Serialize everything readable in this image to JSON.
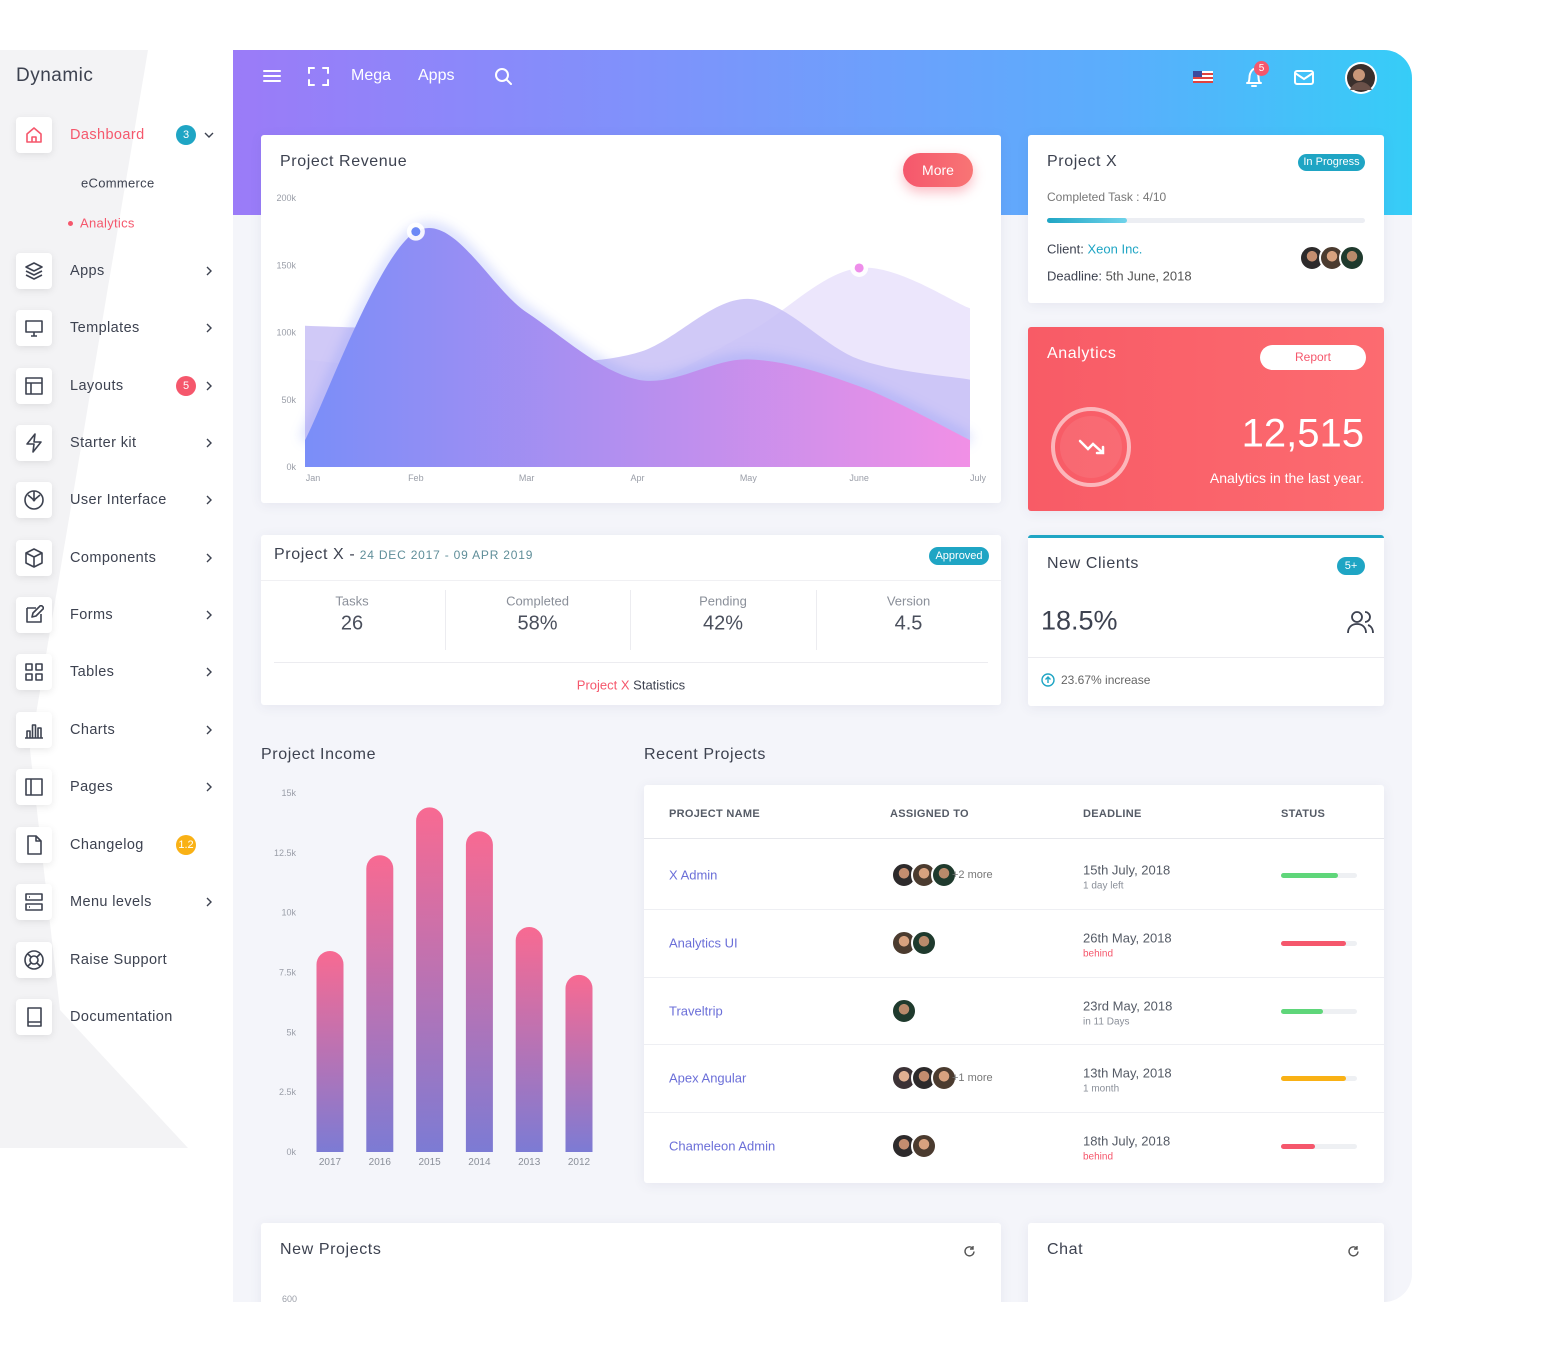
{
  "brand": "Dynamic",
  "sidebar": {
    "items": [
      {
        "label": "Dashboard",
        "badge": "3",
        "badge_color": "#1fa5c4",
        "submenu": true,
        "open": true
      },
      {
        "label": "Apps",
        "submenu": true
      },
      {
        "label": "Templates",
        "submenu": true
      },
      {
        "label": "Layouts",
        "badge": "5",
        "badge_color": "#f5576c",
        "submenu": true
      },
      {
        "label": "Starter kit",
        "submenu": true
      },
      {
        "label": "User Interface",
        "submenu": true
      },
      {
        "label": "Components",
        "submenu": true
      },
      {
        "label": "Forms",
        "submenu": true
      },
      {
        "label": "Tables",
        "submenu": true
      },
      {
        "label": "Charts",
        "submenu": true
      },
      {
        "label": "Pages",
        "submenu": true
      },
      {
        "label": "Changelog",
        "badge": "1.2",
        "badge_color": "#f9b115",
        "submenu": false
      },
      {
        "label": "Menu levels",
        "submenu": true
      },
      {
        "label": "Raise Support",
        "submenu": false
      },
      {
        "label": "Documentation",
        "submenu": false
      }
    ],
    "subitems": [
      "eCommerce",
      "Analytics"
    ]
  },
  "topbar": {
    "links": [
      "Mega",
      "Apps"
    ],
    "notifications": "5"
  },
  "chart_data": [
    {
      "type": "area",
      "title": "Project Revenue",
      "button": "More",
      "categories": [
        "Jan",
        "Feb",
        "Mar",
        "Apr",
        "May",
        "June",
        "July"
      ],
      "series": [
        {
          "color": "#e9e2fb",
          "values": [
            80000,
            70000,
            55000,
            60000,
            100000,
            148000,
            118000
          ],
          "marker": "#ee8eea"
        },
        {
          "color": "#c8c0f6",
          "values": [
            105000,
            100000,
            80000,
            85000,
            125000,
            80000,
            65000
          ]
        },
        {
          "color": "#7a8ef8",
          "color_end": "#f190e6",
          "values": [
            20000,
            175000,
            115000,
            65000,
            80000,
            60000,
            20000
          ],
          "marker": "#6b88f6"
        }
      ],
      "ylim": [
        0,
        200000
      ],
      "yticks": [
        {
          "value": 0,
          "label": "0k"
        },
        {
          "value": 50000,
          "label": "50k"
        },
        {
          "value": 100000,
          "label": "100k"
        },
        {
          "value": 150000,
          "label": "150k"
        },
        {
          "value": 200000,
          "label": "200k"
        }
      ],
      "grid": false
    },
    {
      "type": "bar",
      "title": "Project Income",
      "categories": [
        "2017",
        "2016",
        "2015",
        "2014",
        "2013",
        "2012"
      ],
      "values": [
        8400,
        12400,
        14400,
        13400,
        9400,
        7400
      ],
      "color": "#f86a92",
      "color_end": "#7c7bd4",
      "ylim": [
        0,
        15000
      ],
      "yticks": [
        {
          "value": 0,
          "label": "0k"
        },
        {
          "value": 2500,
          "label": "2.5k"
        },
        {
          "value": 5000,
          "label": "5k"
        },
        {
          "value": 7500,
          "label": "7.5k"
        },
        {
          "value": 10000,
          "label": "10k"
        },
        {
          "value": 12500,
          "label": "12.5k"
        },
        {
          "value": 15000,
          "label": "15k"
        }
      ],
      "grid": false
    },
    {
      "type": "line",
      "title": "New Projects",
      "yticks": [
        600
      ]
    }
  ],
  "project_card": {
    "title": "Project X",
    "badge": "In Progress",
    "completed": "Completed Task : 4/10",
    "progress": 25,
    "client_label": "Client:",
    "client": "Xeon Inc.",
    "deadline_label": "Deadline:",
    "deadline": "5th June, 2018"
  },
  "analytics_card": {
    "title": "Analytics",
    "button": "Report",
    "value": "12,515",
    "caption": "Analytics in the last year."
  },
  "stats_card": {
    "title": "Project X -",
    "dates": "24 DEC 2017 - 09 APR 2019",
    "badge": "Approved",
    "stats": [
      {
        "label": "Tasks",
        "value": "26"
      },
      {
        "label": "Completed",
        "value": "58%"
      },
      {
        "label": "Pending",
        "value": "42%"
      },
      {
        "label": "Version",
        "value": "4.5"
      }
    ],
    "footer_highlight": "Project X",
    "footer": "Statistics"
  },
  "new_clients": {
    "title": "New Clients",
    "badge": "5+",
    "value": "18.5%",
    "note": "23.67% increase"
  },
  "recent_projects": {
    "title": "Recent Projects",
    "columns": [
      "PROJECT NAME",
      "ASSIGNED TO",
      "DEADLINE",
      "STATUS"
    ],
    "rows": [
      {
        "name": "X Admin",
        "more": "+2 more",
        "deadline": "15th July, 2018",
        "due": "1 day left",
        "due_color": "#8a8f99",
        "status": 75,
        "status_color": "#5fd67a"
      },
      {
        "name": "Analytics UI",
        "deadline": "26th May, 2018",
        "due": "behind",
        "due_color": "#f5576c",
        "status": 86,
        "status_color": "#f5576c"
      },
      {
        "name": "Traveltrip",
        "deadline": "23rd May, 2018",
        "due": "in 11 Days",
        "due_color": "#8a8f99",
        "status": 55,
        "status_color": "#5fd67a"
      },
      {
        "name": "Apex Angular",
        "more": "+1 more",
        "deadline": "13th May, 2018",
        "due": "1 month",
        "due_color": "#8a8f99",
        "status": 86,
        "status_color": "#f9b115"
      },
      {
        "name": "Chameleon Admin",
        "deadline": "18th July, 2018",
        "due": "behind",
        "due_color": "#f5576c",
        "status": 45,
        "status_color": "#f5576c"
      }
    ]
  },
  "chat": {
    "title": "Chat"
  }
}
